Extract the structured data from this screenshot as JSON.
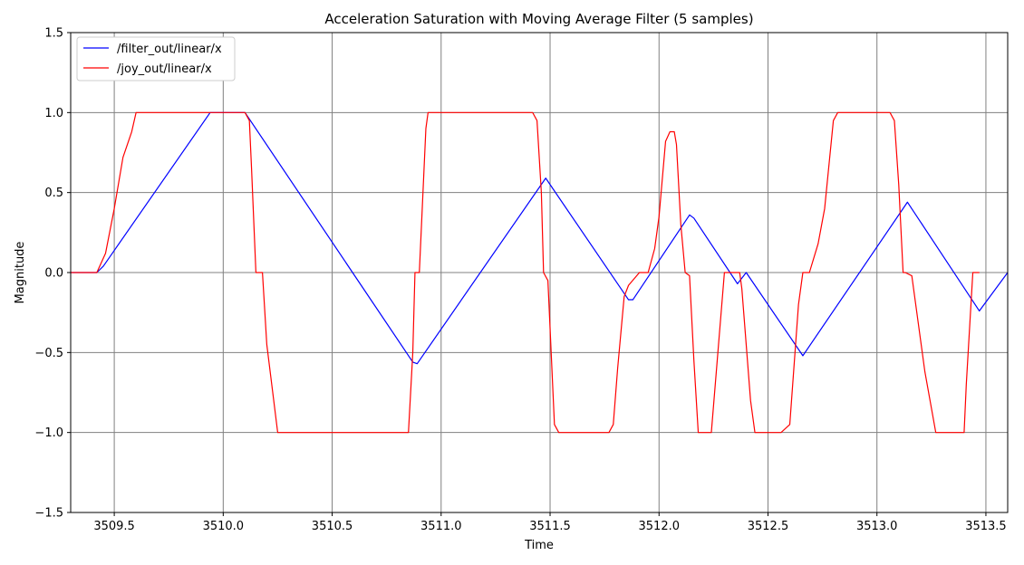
{
  "chart_data": {
    "type": "line",
    "title": "Acceleration Saturation with Moving Average Filter (5 samples)",
    "xlabel": "Time",
    "ylabel": "Magnitude",
    "xlim": [
      3509.3,
      3513.6
    ],
    "ylim": [
      -1.5,
      1.5
    ],
    "xticks": [
      3509.5,
      3510.0,
      3510.5,
      3511.0,
      3511.5,
      3512.0,
      3512.5,
      3513.0,
      3513.5
    ],
    "xtick_labels": [
      "3509.5",
      "3510.0",
      "3510.5",
      "3511.0",
      "3511.5",
      "3512.0",
      "3512.5",
      "3513.0",
      "3513.5"
    ],
    "yticks": [
      -1.5,
      -1.0,
      -0.5,
      0.0,
      0.5,
      1.0,
      1.5
    ],
    "ytick_labels": [
      "−1.5",
      "−1.0",
      "−0.5",
      "0.0",
      "0.5",
      "1.0",
      "1.5"
    ],
    "grid": true,
    "legend_position": "upper-left",
    "series": [
      {
        "name": "/filter_out/linear/x",
        "color": "#0000ff",
        "x": [
          3509.3,
          3509.42,
          3509.45,
          3509.94,
          3510.1,
          3510.87,
          3510.89,
          3511.48,
          3511.86,
          3511.88,
          3512.14,
          3512.16,
          3512.36,
          3512.4,
          3512.66,
          3513.14,
          3513.47,
          3513.6
        ],
        "y": [
          0.0,
          0.0,
          0.04,
          1.0,
          1.0,
          -0.56,
          -0.57,
          0.59,
          -0.17,
          -0.17,
          0.36,
          0.34,
          -0.07,
          0.0,
          -0.52,
          0.44,
          -0.24,
          0.0
        ]
      },
      {
        "name": "/joy_out/linear/x",
        "color": "#ff0000",
        "x": [
          3509.3,
          3509.42,
          3509.46,
          3509.5,
          3509.54,
          3509.58,
          3509.6,
          3509.62,
          3510.1,
          3510.12,
          3510.13,
          3510.15,
          3510.18,
          3510.2,
          3510.25,
          3510.85,
          3510.87,
          3510.88,
          3510.9,
          3510.93,
          3510.94,
          3511.42,
          3511.44,
          3511.46,
          3511.47,
          3511.49,
          3511.52,
          3511.54,
          3511.77,
          3511.79,
          3511.81,
          3511.84,
          3511.86,
          3511.91,
          3511.95,
          3511.98,
          3512.0,
          3512.03,
          3512.05,
          3512.07,
          3512.08,
          3512.1,
          3512.12,
          3512.14,
          3512.16,
          3512.18,
          3512.2,
          3512.24,
          3512.3,
          3512.32,
          3512.37,
          3512.38,
          3512.42,
          3512.44,
          3512.56,
          3512.6,
          3512.64,
          3512.66,
          3512.69,
          3512.73,
          3512.76,
          3512.8,
          3512.82,
          3512.84,
          3513.06,
          3513.08,
          3513.1,
          3513.12,
          3513.13,
          3513.16,
          3513.22,
          3513.27,
          3513.3,
          3513.4,
          3513.41,
          3513.44,
          3513.47
        ],
        "y": [
          0.0,
          0.0,
          0.12,
          0.4,
          0.72,
          0.88,
          1.0,
          1.0,
          1.0,
          0.95,
          0.65,
          0.0,
          0.0,
          -0.45,
          -1.0,
          -1.0,
          -0.5,
          0.0,
          0.0,
          0.9,
          1.0,
          1.0,
          0.95,
          0.5,
          0.0,
          -0.05,
          -0.95,
          -1.0,
          -1.0,
          -0.95,
          -0.6,
          -0.15,
          -0.08,
          0.0,
          0.0,
          0.15,
          0.35,
          0.82,
          0.88,
          0.88,
          0.8,
          0.3,
          0.0,
          -0.02,
          -0.55,
          -1.0,
          -1.0,
          -1.0,
          0.0,
          0.0,
          0.0,
          -0.1,
          -0.8,
          -1.0,
          -1.0,
          -0.95,
          -0.2,
          0.0,
          0.0,
          0.18,
          0.4,
          0.95,
          1.0,
          1.0,
          1.0,
          0.95,
          0.55,
          0.0,
          0.0,
          -0.02,
          -0.62,
          -1.0,
          -1.0,
          -1.0,
          -0.7,
          0.0,
          0.0
        ]
      }
    ]
  }
}
